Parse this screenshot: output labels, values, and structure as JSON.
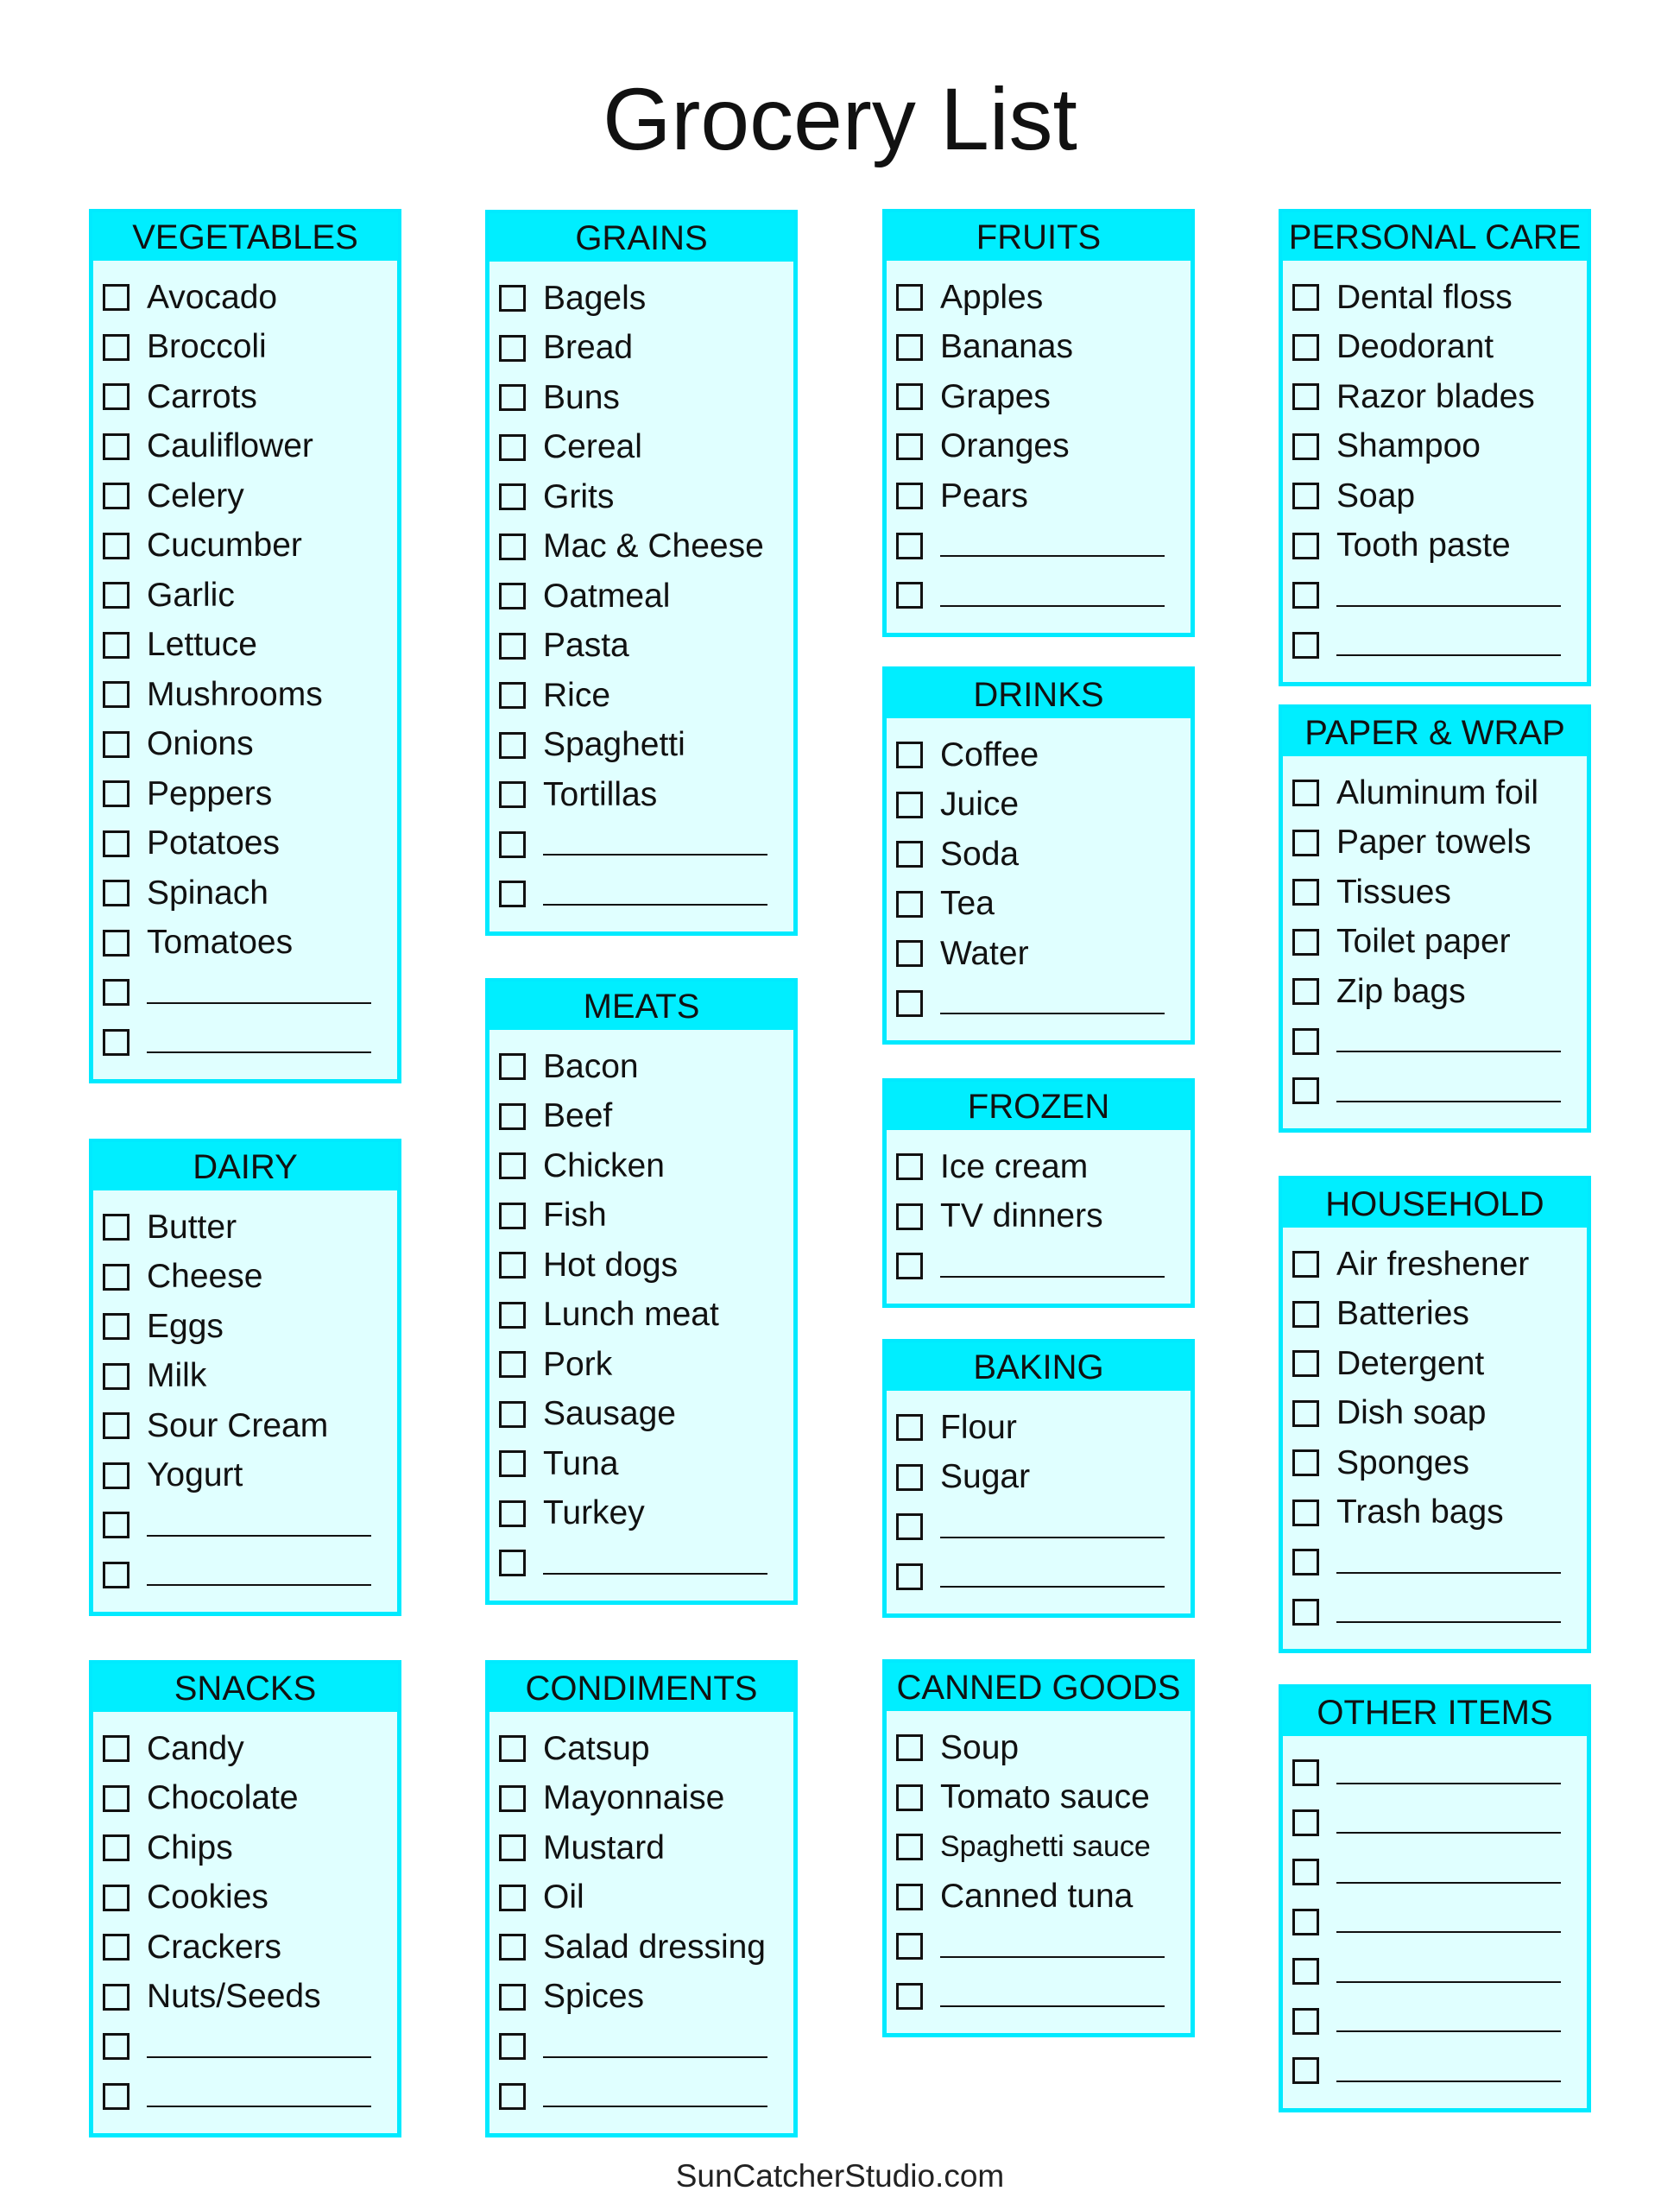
{
  "title": "Grocery List",
  "footer": "SunCatcherStudio.com",
  "colors": {
    "header": "#00eeff",
    "body": "#e0ffff",
    "border": "#00eaff"
  },
  "sections": [
    {
      "name": "VEGETABLES",
      "items": [
        "Avocado",
        "Broccoli",
        "Carrots",
        "Cauliflower",
        "Celery",
        "Cucumber",
        "Garlic",
        "Lettuce",
        "Mushrooms",
        "Onions",
        "Peppers",
        "Potatoes",
        "Spinach",
        "Tomatoes"
      ],
      "blanks": 2
    },
    {
      "name": "DAIRY",
      "items": [
        "Butter",
        "Cheese",
        "Eggs",
        "Milk",
        "Sour Cream",
        "Yogurt"
      ],
      "blanks": 2
    },
    {
      "name": "SNACKS",
      "items": [
        "Candy",
        "Chocolate",
        "Chips",
        "Cookies",
        "Crackers",
        "Nuts/Seeds"
      ],
      "blanks": 2
    },
    {
      "name": "GRAINS",
      "items": [
        "Bagels",
        "Bread",
        "Buns",
        "Cereal",
        "Grits",
        "Mac & Cheese",
        "Oatmeal",
        "Pasta",
        "Rice",
        "Spaghetti",
        "Tortillas"
      ],
      "blanks": 2
    },
    {
      "name": "MEATS",
      "items": [
        "Bacon",
        "Beef",
        "Chicken",
        "Fish",
        "Hot dogs",
        "Lunch meat",
        "Pork",
        "Sausage",
        "Tuna",
        "Turkey"
      ],
      "blanks": 1
    },
    {
      "name": "CONDIMENTS",
      "items": [
        "Catsup",
        "Mayonnaise",
        "Mustard",
        "Oil",
        "Salad dressing",
        "Spices"
      ],
      "blanks": 2
    },
    {
      "name": "FRUITS",
      "items": [
        "Apples",
        "Bananas",
        "Grapes",
        "Oranges",
        "Pears"
      ],
      "blanks": 2
    },
    {
      "name": "DRINKS",
      "items": [
        "Coffee",
        "Juice",
        "Soda",
        "Tea",
        "Water"
      ],
      "blanks": 1
    },
    {
      "name": "FROZEN",
      "items": [
        "Ice cream",
        "TV dinners"
      ],
      "blanks": 1
    },
    {
      "name": "BAKING",
      "items": [
        "Flour",
        "Sugar"
      ],
      "blanks": 2
    },
    {
      "name": "CANNED GOODS",
      "items": [
        "Soup",
        "Tomato sauce",
        "Spaghetti sauce",
        "Canned tuna"
      ],
      "blanks": 2
    },
    {
      "name": "PERSONAL CARE",
      "items": [
        "Dental floss",
        "Deodorant",
        "Razor blades",
        "Shampoo",
        "Soap",
        "Tooth paste"
      ],
      "blanks": 2
    },
    {
      "name": "PAPER & WRAP",
      "items": [
        "Aluminum foil",
        "Paper towels",
        "Tissues",
        "Toilet paper",
        "Zip bags"
      ],
      "blanks": 2
    },
    {
      "name": "HOUSEHOLD",
      "items": [
        "Air freshener",
        "Batteries",
        "Detergent",
        "Dish soap",
        "Sponges",
        "Trash bags"
      ],
      "blanks": 2
    },
    {
      "name": "OTHER ITEMS",
      "items": [],
      "blanks": 7
    }
  ]
}
